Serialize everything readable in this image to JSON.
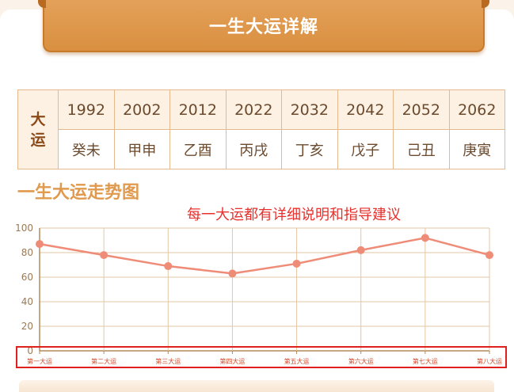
{
  "banner": {
    "title": "一生大运详解"
  },
  "dayun_table": {
    "head_label": "大运",
    "years": [
      "1992",
      "2002",
      "2012",
      "2022",
      "2032",
      "2042",
      "2052",
      "2062"
    ],
    "pillars": [
      "癸未",
      "甲申",
      "乙酉",
      "丙戌",
      "丁亥",
      "戊子",
      "己丑",
      "庚寅"
    ]
  },
  "section": {
    "title": "一生大运走势图"
  },
  "note": {
    "text": "每一大运都有详细说明和指导建议"
  },
  "colors": {
    "line": "#ef8c78",
    "grid": "#e3c7a4",
    "axis": "#b08a5a",
    "tick_text": "#9a7a55",
    "category_text": "#d14a2a",
    "highlight": "#e0201c",
    "banner": "#d98f3f",
    "section_title": "#e09a4e",
    "note": "#e8302c"
  },
  "chart_data": {
    "type": "line",
    "categories": [
      "第一大运",
      "第二大运",
      "第三大运",
      "第四大运",
      "第五大运",
      "第六大运",
      "第七大运",
      "第八大运"
    ],
    "values": [
      87,
      78,
      69,
      63,
      71,
      82,
      92,
      78
    ],
    "ylim": [
      0,
      100
    ],
    "yticks": [
      0,
      20,
      40,
      60,
      80,
      100
    ],
    "grid": true,
    "title": "",
    "xlabel": "",
    "ylabel": ""
  }
}
